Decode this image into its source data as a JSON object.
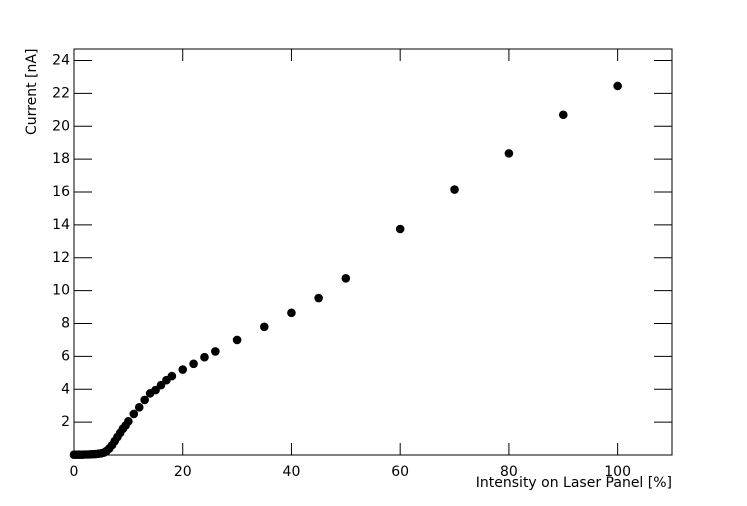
{
  "chart_data": {
    "type": "scatter",
    "x_label": "Intensity on Laser Panel [%]",
    "y_label": "Current [nA]",
    "x": [
      0,
      0.5,
      1,
      1.5,
      2,
      2.5,
      3,
      3.5,
      4,
      4.5,
      5,
      5.5,
      6,
      6.5,
      7,
      7.5,
      8,
      8.5,
      9,
      9.5,
      10,
      11,
      12,
      13,
      14,
      15,
      16,
      17,
      18,
      20,
      22,
      24,
      26,
      30,
      35,
      40,
      45,
      50,
      60,
      70,
      80,
      90,
      100
    ],
    "series": [
      {
        "color": "#000000",
        "values": [
          0.02,
          0.02,
          0.02,
          0.02,
          0.03,
          0.03,
          0.04,
          0.05,
          0.06,
          0.08,
          0.1,
          0.15,
          0.25,
          0.4,
          0.6,
          0.85,
          1.1,
          1.35,
          1.6,
          1.8,
          2.05,
          2.5,
          2.9,
          3.35,
          3.75,
          3.95,
          4.25,
          4.55,
          4.8,
          5.2,
          5.55,
          5.95,
          6.3,
          7.0,
          7.8,
          8.65,
          9.55,
          10.75,
          13.75,
          16.15,
          18.35,
          20.7,
          22.45
        ]
      }
    ],
    "xlim": [
      0,
      110
    ],
    "xticks": [
      0,
      20,
      40,
      60,
      80,
      100
    ],
    "ylim": [
      0,
      24.7
    ],
    "yticks": [
      2,
      4,
      6,
      8,
      10,
      12,
      14,
      16,
      18,
      20,
      22,
      24
    ]
  }
}
